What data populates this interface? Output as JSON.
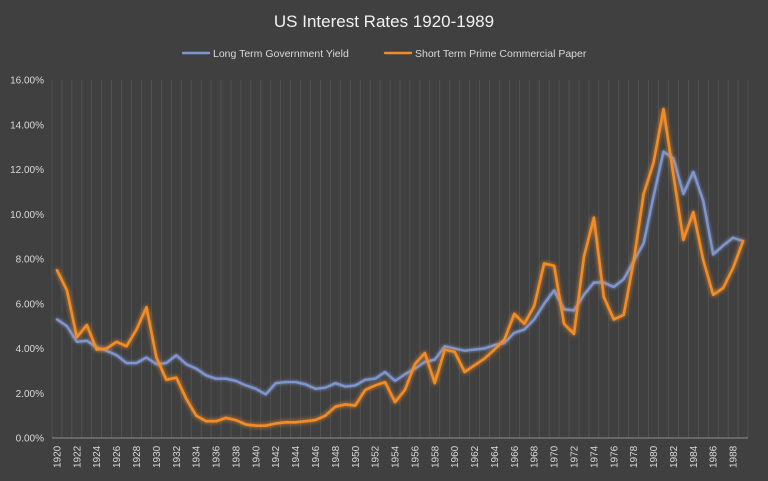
{
  "chart_data": {
    "type": "line",
    "title": "US Interest Rates 1920-1989",
    "xlabel": "",
    "ylabel": "",
    "x": [
      1920,
      1921,
      1922,
      1923,
      1924,
      1925,
      1926,
      1927,
      1928,
      1929,
      1930,
      1931,
      1932,
      1933,
      1934,
      1935,
      1936,
      1937,
      1938,
      1939,
      1940,
      1941,
      1942,
      1943,
      1944,
      1945,
      1946,
      1947,
      1948,
      1949,
      1950,
      1951,
      1952,
      1953,
      1954,
      1955,
      1956,
      1957,
      1958,
      1959,
      1960,
      1961,
      1962,
      1963,
      1964,
      1965,
      1966,
      1967,
      1968,
      1969,
      1970,
      1971,
      1972,
      1973,
      1974,
      1975,
      1976,
      1977,
      1978,
      1979,
      1980,
      1981,
      1982,
      1983,
      1984,
      1985,
      1986,
      1987,
      1988,
      1989
    ],
    "x_tick_labels": [
      "1920",
      "1922",
      "1924",
      "1926",
      "1928",
      "1930",
      "1932",
      "1934",
      "1936",
      "1938",
      "1940",
      "1942",
      "1944",
      "1946",
      "1948",
      "1950",
      "1952",
      "1954",
      "1956",
      "1958",
      "1960",
      "1962",
      "1964",
      "1966",
      "1968",
      "1970",
      "1972",
      "1974",
      "1976",
      "1978",
      "1980",
      "1982",
      "1984",
      "1986",
      "1988"
    ],
    "y_tick_labels": [
      "0.00%",
      "2.00%",
      "4.00%",
      "6.00%",
      "8.00%",
      "10.00%",
      "12.00%",
      "14.00%",
      "16.00%"
    ],
    "ylim": [
      0,
      16
    ],
    "y_step": 2,
    "grid": "vertical",
    "legend_position": "top",
    "colors": {
      "background": "#404040",
      "gridline": "#595959",
      "axis": "#8c8c8c",
      "text": "#d9d9d9",
      "title": "#f2f2f2"
    },
    "series": [
      {
        "name": "Long Term Government Yield",
        "color": "#7f95cf",
        "values": [
          5.3,
          5.0,
          4.3,
          4.35,
          4.05,
          3.9,
          3.7,
          3.35,
          3.35,
          3.6,
          3.3,
          3.35,
          3.7,
          3.3,
          3.1,
          2.8,
          2.65,
          2.65,
          2.55,
          2.35,
          2.2,
          1.95,
          2.45,
          2.5,
          2.5,
          2.4,
          2.2,
          2.25,
          2.45,
          2.3,
          2.35,
          2.6,
          2.65,
          2.95,
          2.55,
          2.85,
          3.1,
          3.4,
          3.5,
          4.1,
          4.0,
          3.9,
          3.95,
          4.0,
          4.15,
          4.25,
          4.7,
          4.85,
          5.3,
          6.0,
          6.6,
          5.75,
          5.7,
          6.4,
          6.95,
          6.95,
          6.75,
          7.1,
          7.9,
          8.7,
          10.8,
          12.8,
          12.5,
          10.9,
          11.9,
          10.6,
          8.2,
          8.6,
          8.95,
          8.8
        ]
      },
      {
        "name": "Short Term Prime Commercial Paper",
        "color": "#f28c28",
        "values": [
          7.5,
          6.6,
          4.5,
          5.05,
          3.95,
          4.0,
          4.3,
          4.1,
          4.85,
          5.85,
          3.6,
          2.6,
          2.7,
          1.75,
          1.0,
          0.75,
          0.75,
          0.9,
          0.8,
          0.6,
          0.55,
          0.55,
          0.65,
          0.7,
          0.7,
          0.75,
          0.8,
          1.0,
          1.4,
          1.5,
          1.45,
          2.15,
          2.35,
          2.5,
          1.6,
          2.15,
          3.3,
          3.8,
          2.45,
          3.95,
          3.85,
          2.95,
          3.25,
          3.55,
          3.95,
          4.4,
          5.55,
          5.1,
          5.9,
          7.8,
          7.7,
          5.1,
          4.65,
          8.1,
          9.85,
          6.3,
          5.3,
          5.5,
          7.9,
          10.9,
          12.3,
          14.7,
          11.75,
          8.85,
          10.1,
          7.95,
          6.4,
          6.7,
          7.6,
          8.8
        ]
      }
    ]
  }
}
